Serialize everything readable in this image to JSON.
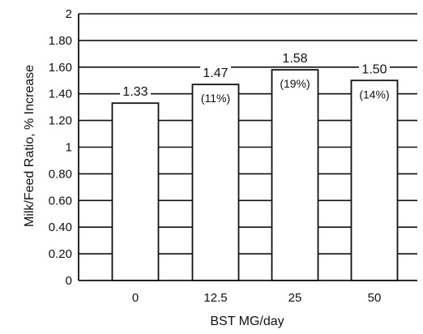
{
  "chart_data": {
    "type": "bar",
    "categories": [
      "0",
      "12.5",
      "25",
      "50"
    ],
    "values": [
      1.33,
      1.47,
      1.58,
      1.5
    ],
    "data_labels": [
      "1.33",
      "1.47",
      "1.58",
      "1.50"
    ],
    "percent_labels": [
      "",
      "(11%)",
      "(19%)",
      "(14%)"
    ],
    "title": "",
    "xlabel": "BST MG/day",
    "ylabel": "Milk/Feed Ratio, % Increase",
    "ylim": [
      0,
      2
    ],
    "yticks": [
      0,
      0.2,
      0.4,
      0.6,
      0.8,
      1,
      1.2,
      1.4,
      1.6,
      1.8,
      2
    ],
    "ytick_labels": [
      "0",
      "0.20",
      "0.40",
      "0.60",
      "0.80",
      "1",
      "1.20",
      "1.40",
      "1.60",
      "1.80",
      "2"
    ],
    "grid": true,
    "bar_color": "#ffffff",
    "line_color": "#111111"
  }
}
